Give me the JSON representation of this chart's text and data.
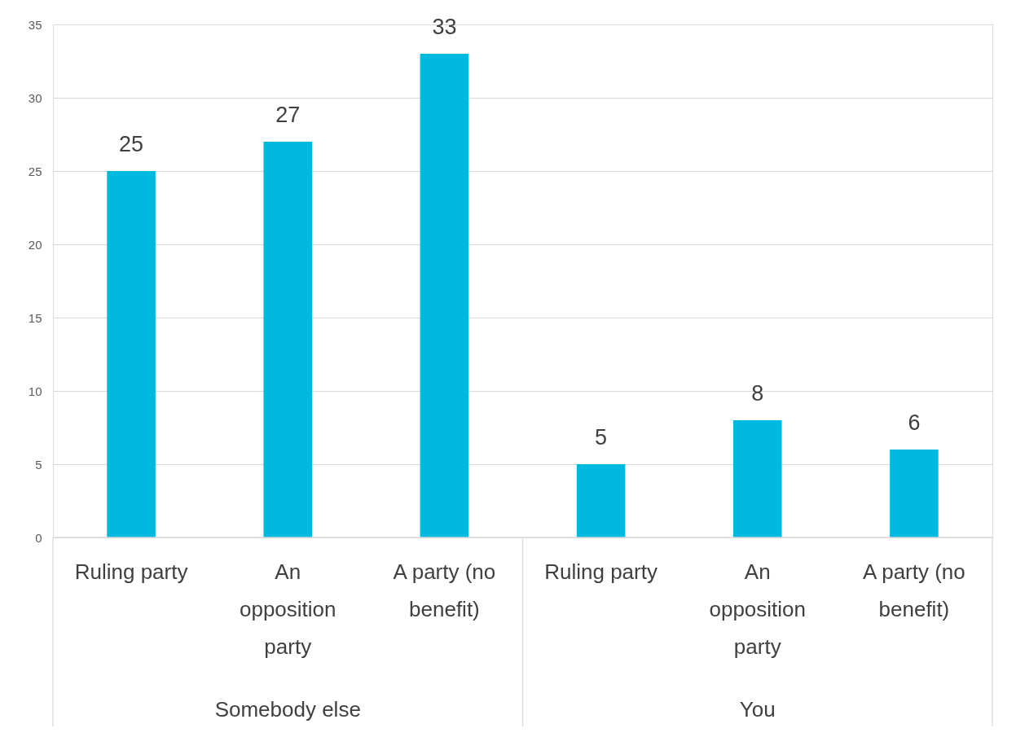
{
  "chart_data": {
    "type": "bar",
    "categories": [
      "Ruling party",
      "An opposition party",
      "A party (no benefit)",
      "Ruling party",
      "An opposition party",
      "A party (no benefit)"
    ],
    "values": [
      25,
      27,
      33,
      5,
      8,
      6
    ],
    "color": "#00b9e1",
    "data_labels": true,
    "ylim": [
      0,
      35
    ],
    "yticks": [
      0,
      5,
      10,
      15,
      20,
      25,
      30,
      35
    ],
    "grid": "y",
    "annotations": [
      "Somebody else",
      "You"
    ]
  }
}
